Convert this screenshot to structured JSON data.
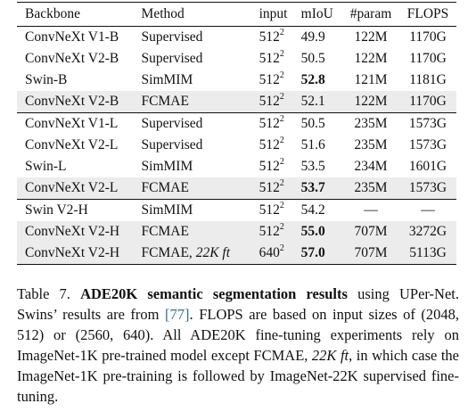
{
  "table": {
    "headers": [
      "Backbone",
      "Method",
      "input",
      "mIoU",
      "#param",
      "FLOPS"
    ],
    "rows": [
      {
        "backbone": "ConvNeXt V1-B",
        "method": "Supervised",
        "input_base": "512",
        "input_exp": "2",
        "miou": "49.9",
        "param": "122M",
        "flops": "1170G"
      },
      {
        "backbone": "ConvNeXt V2-B",
        "method": "Supervised",
        "input_base": "512",
        "input_exp": "2",
        "miou": "50.5",
        "param": "122M",
        "flops": "1170G"
      },
      {
        "backbone": "Swin-B",
        "method": "SimMIM",
        "input_base": "512",
        "input_exp": "2",
        "miou": "52.8",
        "param": "121M",
        "flops": "1181G"
      },
      {
        "backbone": "ConvNeXt V2-B",
        "method": "FCMAE",
        "input_base": "512",
        "input_exp": "2",
        "miou": "52.1",
        "param": "122M",
        "flops": "1170G"
      },
      {
        "backbone": "ConvNeXt V1-L",
        "method": "Supervised",
        "input_base": "512",
        "input_exp": "2",
        "miou": "50.5",
        "param": "235M",
        "flops": "1573G"
      },
      {
        "backbone": "ConvNeXt V2-L",
        "method": "Supervised",
        "input_base": "512",
        "input_exp": "2",
        "miou": "51.6",
        "param": "235M",
        "flops": "1573G"
      },
      {
        "backbone": "Swin-L",
        "method": "SimMIM",
        "input_base": "512",
        "input_exp": "2",
        "miou": "53.5",
        "param": "234M",
        "flops": "1601G"
      },
      {
        "backbone": "ConvNeXt V2-L",
        "method": "FCMAE",
        "input_base": "512",
        "input_exp": "2",
        "miou": "53.7",
        "param": "235M",
        "flops": "1573G"
      },
      {
        "backbone": "Swin V2-H",
        "method": "SimMIM",
        "input_base": "512",
        "input_exp": "2",
        "miou": "54.2",
        "param": "—",
        "flops": "—"
      },
      {
        "backbone": "ConvNeXt V2-H",
        "method": "FCMAE",
        "input_base": "512",
        "input_exp": "2",
        "miou": "55.0",
        "param": "707M",
        "flops": "3272G"
      },
      {
        "backbone": "ConvNeXt V2-H",
        "method": "FCMAE, ",
        "method_italic": "22K ft",
        "input_base": "640",
        "input_exp": "2",
        "miou": "57.0",
        "param": "707M",
        "flops": "5113G"
      }
    ]
  },
  "caption": {
    "prefix": "Table 7. ",
    "bold_title": "ADE20K semantic segmentation results",
    "text1": " using UPer-Net. Swins’ results are from ",
    "cite": "[77]",
    "text2": ". FLOPS are based on input sizes of (2048, 512) or (2560, 640). All ADE20K fine-tuning experiments rely on ImageNet-1K pre-trained model except FCMAE, ",
    "italic": "22K ft",
    "text3": ", in which case the ImageNet-1K pre-training is followed by ImageNet-22K supervised fine-tuning."
  }
}
